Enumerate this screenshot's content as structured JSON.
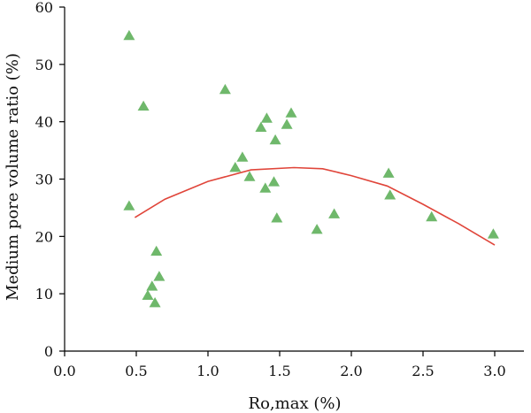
{
  "chart_data": {
    "type": "scatter",
    "title": "",
    "xlabel": "Ro,max (%)",
    "ylabel": "Medium pore volume ratio (%)",
    "xlim": [
      0.0,
      3.2
    ],
    "ylim": [
      0,
      60
    ],
    "xticks": [
      0.0,
      0.5,
      1.0,
      1.5,
      2.0,
      2.5,
      3.0
    ],
    "xtick_labels": [
      "0.0",
      "0.5",
      "1.0",
      "1.5",
      "2.0",
      "2.5",
      "3.0"
    ],
    "yticks": [
      0,
      10,
      20,
      30,
      40,
      50,
      60
    ],
    "ytick_labels": [
      "0",
      "10",
      "20",
      "30",
      "40",
      "50",
      "60"
    ],
    "grid": false,
    "legend": "none",
    "series": [
      {
        "kind": "scatter",
        "marker": "triangle",
        "color": "#6fb86b",
        "points": [
          [
            0.45,
            55.0
          ],
          [
            0.45,
            25.3
          ],
          [
            0.55,
            42.7
          ],
          [
            0.58,
            9.7
          ],
          [
            0.61,
            11.3
          ],
          [
            0.63,
            8.4
          ],
          [
            0.64,
            17.4
          ],
          [
            0.66,
            13.0
          ],
          [
            1.12,
            45.6
          ],
          [
            1.19,
            32.0
          ],
          [
            1.24,
            33.8
          ],
          [
            1.29,
            30.4
          ],
          [
            1.37,
            39.0
          ],
          [
            1.41,
            40.6
          ],
          [
            1.4,
            28.4
          ],
          [
            1.46,
            29.5
          ],
          [
            1.47,
            36.8
          ],
          [
            1.48,
            23.2
          ],
          [
            1.55,
            39.5
          ],
          [
            1.58,
            41.5
          ],
          [
            1.76,
            21.2
          ],
          [
            1.88,
            23.9
          ],
          [
            2.26,
            31.0
          ],
          [
            2.27,
            27.2
          ],
          [
            2.56,
            23.4
          ],
          [
            2.99,
            20.4
          ]
        ]
      },
      {
        "kind": "line",
        "color": "#e0453a",
        "points": [
          [
            0.49,
            23.3
          ],
          [
            0.7,
            26.5
          ],
          [
            1.0,
            29.6
          ],
          [
            1.3,
            31.6
          ],
          [
            1.6,
            32.0
          ],
          [
            1.8,
            31.8
          ],
          [
            2.0,
            30.6
          ],
          [
            2.25,
            28.8
          ],
          [
            2.5,
            25.6
          ],
          [
            2.75,
            22.2
          ],
          [
            3.0,
            18.5
          ]
        ]
      }
    ]
  }
}
